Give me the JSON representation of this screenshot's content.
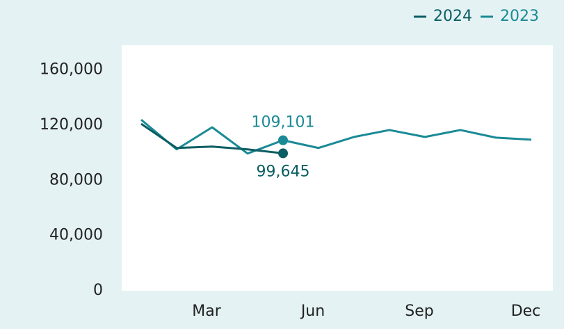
{
  "chart_data": {
    "type": "line",
    "categories": [
      null,
      null,
      "Mar",
      null,
      null,
      "Jun",
      null,
      null,
      "Sep",
      null,
      null,
      "Dec"
    ],
    "series": [
      {
        "name": "2024",
        "color": "#0b5e63",
        "values": [
          121000,
          103500,
          104500,
          102500,
          99645,
          null,
          null,
          null,
          null,
          null,
          null,
          null
        ],
        "value_labels": [
          null,
          null,
          null,
          null,
          "99,645",
          null,
          null,
          null,
          null,
          null,
          null,
          null
        ]
      },
      {
        "name": "2023",
        "color": "#1a8a96",
        "values": [
          124000,
          102500,
          118500,
          99500,
          109101,
          103500,
          111500,
          116500,
          111500,
          116500,
          111000,
          109500
        ],
        "value_labels": [
          null,
          null,
          null,
          null,
          "109,101",
          null,
          null,
          null,
          null,
          null,
          null,
          null
        ]
      }
    ],
    "ylim": [
      0,
      178000
    ],
    "yticks": [
      0,
      {
        "value": 40000,
        "label": "40,000"
      },
      {
        "value": 80000,
        "label": "80,000"
      },
      {
        "value": 120000,
        "label": "120,000"
      },
      {
        "value": 160000,
        "label": "160,000"
      }
    ],
    "legend": "top-right"
  }
}
